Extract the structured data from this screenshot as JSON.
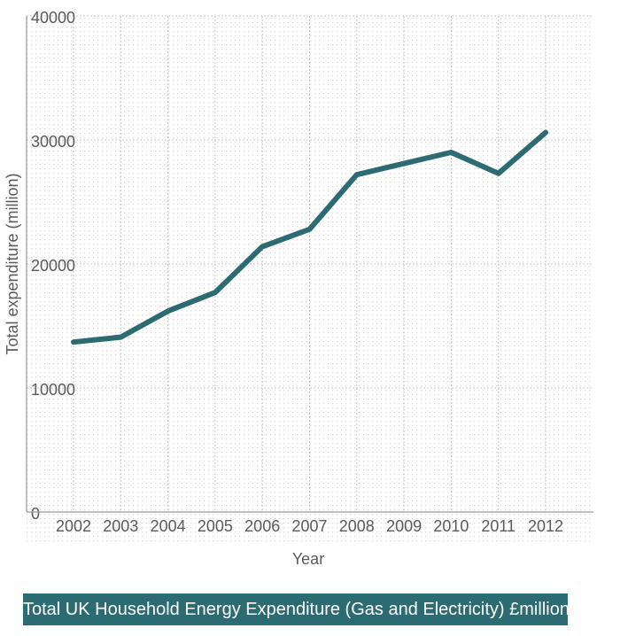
{
  "chart_data": {
    "type": "line",
    "title": "Total UK Household Energy Expenditure (Gas and Electricity) £million",
    "xlabel": "Year",
    "ylabel": "Total expenditure (million)",
    "ylim": [
      0,
      40000
    ],
    "yticks": [
      "0",
      "10000",
      "20000",
      "30000",
      "40000"
    ],
    "categories": [
      "2002",
      "2003",
      "2004",
      "2005",
      "2006",
      "2007",
      "2008",
      "2009",
      "2010",
      "2011",
      "2012"
    ],
    "values": [
      13700,
      14100,
      16200,
      17700,
      21400,
      22800,
      27200,
      28100,
      29000,
      27300,
      30600
    ],
    "grid": true,
    "line_color": "#2d6b72"
  }
}
